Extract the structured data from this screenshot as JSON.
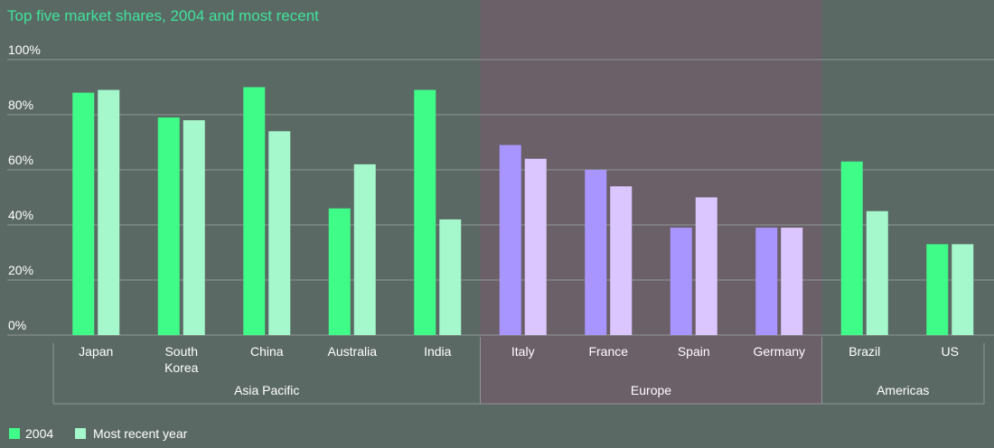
{
  "colors": {
    "background": "#5b6965",
    "europe_band": "#6b5f68",
    "gridline": "#8d9894",
    "axis_text": "#ffffff",
    "title": "#3ee39a",
    "green_2004": "#3ffb87",
    "green_recent": "#a5f7cc",
    "purple_2004": "#a895ff",
    "purple_recent": "#dcc6ff"
  },
  "chart_data": {
    "type": "bar",
    "title": "Top five market shares, 2004 and most recent",
    "ylim": [
      0,
      100
    ],
    "yticks": [
      "0%",
      "20%",
      "40%",
      "60%",
      "80%",
      "100%"
    ],
    "grid": true,
    "legend_position": "bottom-left",
    "categories": [
      "Japan",
      "South Korea",
      "China",
      "Australia",
      "India",
      "Italy",
      "France",
      "Spain",
      "Germany",
      "Brazil",
      "US"
    ],
    "category_lines": [
      [
        "Japan"
      ],
      [
        "South",
        "Korea"
      ],
      [
        "China"
      ],
      [
        "Australia"
      ],
      [
        "India"
      ],
      [
        "Italy"
      ],
      [
        "France"
      ],
      [
        "Spain"
      ],
      [
        "Germany"
      ],
      [
        "Brazil"
      ],
      [
        "US"
      ]
    ],
    "series": [
      {
        "name": "2004",
        "values": [
          88,
          79,
          90,
          46,
          89,
          69,
          60,
          39,
          39,
          63,
          33
        ]
      },
      {
        "name": "Most recent year",
        "values": [
          89,
          78,
          74,
          62,
          42,
          64,
          54,
          50,
          39,
          45,
          33
        ]
      }
    ],
    "groups": [
      {
        "name": "Asia Pacific",
        "categories": [
          "Japan",
          "South Korea",
          "China",
          "Australia",
          "India"
        ],
        "palette": "green"
      },
      {
        "name": "Europe",
        "categories": [
          "Italy",
          "France",
          "Spain",
          "Germany"
        ],
        "palette": "purple",
        "highlighted": true
      },
      {
        "name": "Americas",
        "categories": [
          "Brazil",
          "US"
        ],
        "palette": "green"
      }
    ]
  }
}
